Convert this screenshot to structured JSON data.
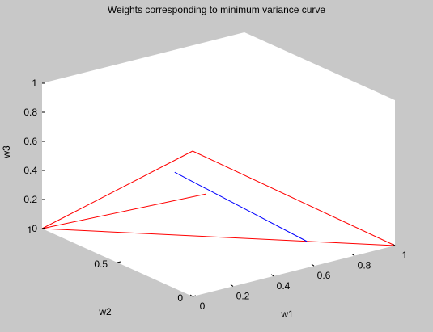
{
  "chart_data": {
    "type": "line3d",
    "title": "Weights corresponding to minimum variance curve",
    "xlabel": "w1",
    "ylabel": "w2",
    "zlabel": "w3",
    "xlim": [
      0,
      1
    ],
    "ylim": [
      0,
      1
    ],
    "zlim": [
      0,
      1
    ],
    "x_ticks": [
      "0",
      "0.2",
      "0.4",
      "0.6",
      "0.8",
      "1"
    ],
    "y_ticks": [
      "0",
      "0.5",
      "1"
    ],
    "z_ticks": [
      "0",
      "0.2",
      "0.4",
      "0.6",
      "0.8",
      "1"
    ],
    "grid": false,
    "series": [
      {
        "color": "#ff0000",
        "segments": [
          [
            [
              0,
              0,
              1
            ],
            [
              1,
              0,
              0
            ]
          ],
          [
            [
              1,
              0,
              0
            ],
            [
              0,
              1,
              0
            ]
          ],
          [
            [
              0,
              1,
              0
            ],
            [
              0,
              0,
              1
            ]
          ],
          [
            [
              0,
              1,
              0
            ],
            [
              0.25,
              0.25,
              0.5
            ]
          ]
        ]
      },
      {
        "color": "#0000ff",
        "segments": [
          [
            [
              0.75,
              0.25,
              0
            ],
            [
              0.06,
              0.2,
              0.74
            ]
          ]
        ]
      }
    ],
    "background_color": "#c8c8c8",
    "axes_color": "#ffffff"
  }
}
